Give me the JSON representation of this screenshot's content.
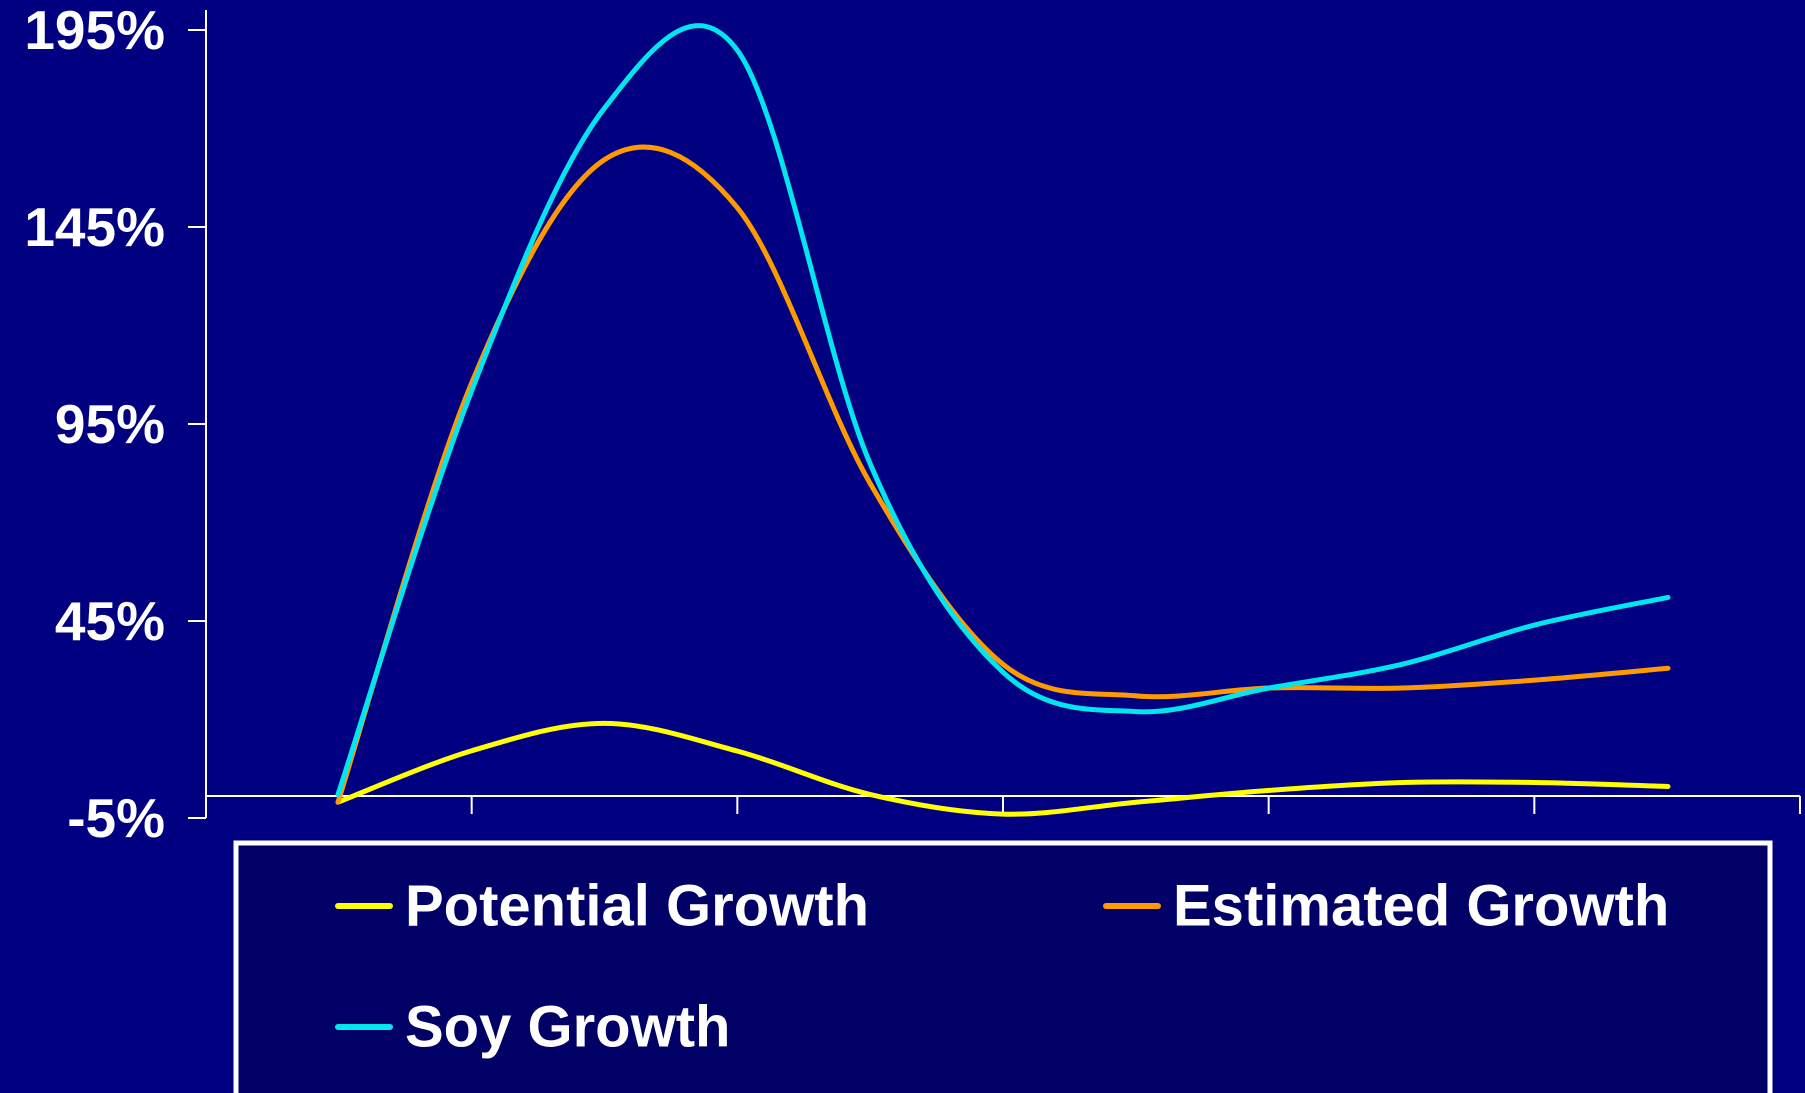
{
  "colors": {
    "background": "#000080",
    "axis": "#ffffff",
    "text": "#ffffff",
    "legend_border": "#ffffff",
    "legend_background": "#000066"
  },
  "chart_data": {
    "type": "line",
    "title": "",
    "xlabel": "",
    "ylabel": "",
    "ylim": [
      -5,
      195
    ],
    "y_ticks": [
      {
        "value": -5,
        "label": "-5%"
      },
      {
        "value": 45,
        "label": "45%"
      },
      {
        "value": 95,
        "label": "95%"
      },
      {
        "value": 145,
        "label": "145%"
      },
      {
        "value": 195,
        "label": "195%"
      }
    ],
    "x_tick_count": 6,
    "x": [
      0,
      1,
      2,
      3,
      4,
      5,
      6,
      7,
      8,
      9,
      10
    ],
    "grid": false,
    "legend_position": "bottom",
    "series": [
      {
        "name": "Potential Growth",
        "color": "#ffff00",
        "values": [
          -1,
          12,
          19,
          12,
          1,
          -4,
          -1,
          2,
          4,
          4,
          3
        ]
      },
      {
        "name": "Estimated Growth",
        "color": "#ff9900",
        "values": [
          -1,
          105,
          162,
          150,
          80,
          34,
          26,
          28,
          28,
          30,
          33
        ]
      },
      {
        "name": "Soy Growth",
        "color": "#00e5ee",
        "values": [
          1,
          103,
          175,
          190,
          85,
          32,
          22,
          28,
          34,
          44,
          51
        ]
      }
    ]
  }
}
